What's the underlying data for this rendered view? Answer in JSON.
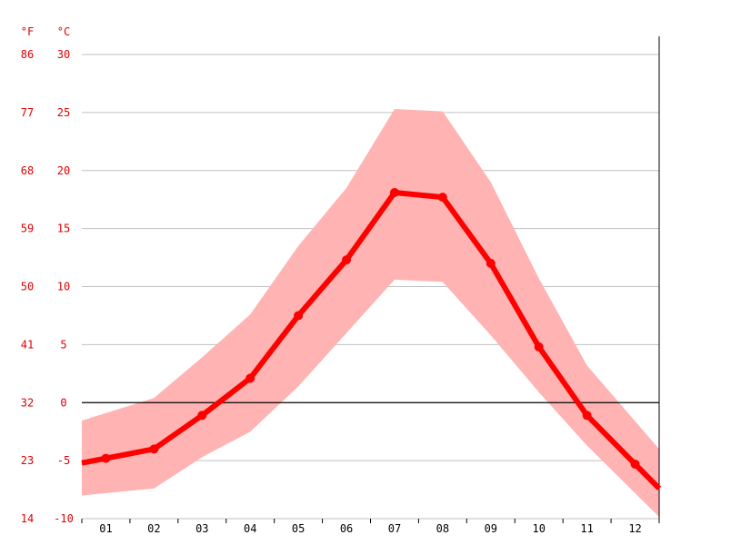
{
  "chart_data": {
    "type": "line",
    "title": "",
    "xlabel": "",
    "ylabel": "",
    "units": {
      "fahrenheit": "°F",
      "celsius": "°C"
    },
    "categories": [
      "01",
      "02",
      "03",
      "04",
      "05",
      "06",
      "07",
      "08",
      "09",
      "10",
      "11",
      "12"
    ],
    "ylim": [
      -10,
      30
    ],
    "yticks_celsius": [
      "30",
      "25",
      "20",
      "15",
      "10",
      "5",
      "0",
      "-5",
      "-10"
    ],
    "yticks_fahrenheit": [
      "86",
      "77",
      "68",
      "59",
      "50",
      "41",
      "32",
      "23",
      "14"
    ],
    "series": [
      {
        "values": [
          -4.8,
          -4.0,
          -1.1,
          2.1,
          7.5,
          12.3,
          18.1,
          17.7,
          12.0,
          4.8,
          -1.1,
          -5.3
        ]
      }
    ],
    "range": {
      "min": [
        -7.8,
        -7.4,
        -4.7,
        -2.5,
        1.4,
        6.0,
        10.6,
        10.4,
        5.8,
        0.9,
        -3.7,
        -7.8
      ],
      "max": [
        -0.9,
        0.4,
        3.9,
        7.6,
        13.5,
        18.5,
        25.3,
        25.1,
        19.0,
        10.7,
        3.2,
        -1.6
      ]
    },
    "grid": true,
    "colors": {
      "line": "#ff0000",
      "band": "#ffb3b3",
      "grid": "#c0c0c0",
      "zero_line": "#000000",
      "tick_text": "#e00000"
    }
  }
}
